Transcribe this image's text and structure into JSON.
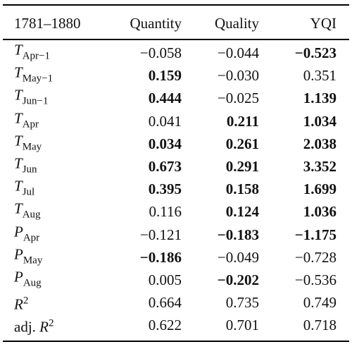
{
  "table": {
    "header": [
      "1781–1880",
      "Quantity",
      "Quality",
      "YQI"
    ],
    "rows": [
      {
        "label": {
          "symbol": "T",
          "sub": "Apr−1"
        },
        "cells": [
          "−0.058",
          "−0.044",
          "−0.523"
        ],
        "bold": [
          false,
          false,
          true
        ]
      },
      {
        "label": {
          "symbol": "T",
          "sub": "May−1"
        },
        "cells": [
          "0.159",
          "−0.030",
          "0.351"
        ],
        "bold": [
          true,
          false,
          false
        ]
      },
      {
        "label": {
          "symbol": "T",
          "sub": "Jun−1"
        },
        "cells": [
          "0.444",
          "−0.025",
          "1.139"
        ],
        "bold": [
          true,
          false,
          true
        ]
      },
      {
        "label": {
          "symbol": "T",
          "sub": "Apr"
        },
        "cells": [
          "0.041",
          "0.211",
          "1.034"
        ],
        "bold": [
          false,
          true,
          true
        ]
      },
      {
        "label": {
          "symbol": "T",
          "sub": "May"
        },
        "cells": [
          "0.034",
          "0.261",
          "2.038"
        ],
        "bold": [
          true,
          true,
          true
        ]
      },
      {
        "label": {
          "symbol": "T",
          "sub": "Jun"
        },
        "cells": [
          "0.673",
          "0.291",
          "3.352"
        ],
        "bold": [
          true,
          true,
          true
        ]
      },
      {
        "label": {
          "symbol": "T",
          "sub": "Jul"
        },
        "cells": [
          "0.395",
          "0.158",
          "1.699"
        ],
        "bold": [
          true,
          true,
          true
        ]
      },
      {
        "label": {
          "symbol": "T",
          "sub": "Aug"
        },
        "cells": [
          "0.116",
          "0.124",
          "1.036"
        ],
        "bold": [
          false,
          true,
          true
        ]
      },
      {
        "label": {
          "symbol": "P",
          "sub": "Apr"
        },
        "cells": [
          "−0.121",
          "−0.183",
          "−1.175"
        ],
        "bold": [
          false,
          true,
          true
        ]
      },
      {
        "label": {
          "symbol": "P",
          "sub": "May"
        },
        "cells": [
          "−0.186",
          "−0.049",
          "−0.728"
        ],
        "bold": [
          true,
          false,
          false
        ]
      },
      {
        "label": {
          "symbol": "P",
          "sub": "Aug"
        },
        "cells": [
          "0.005",
          "−0.202",
          "−0.536"
        ],
        "bold": [
          false,
          true,
          false
        ]
      },
      {
        "label": {
          "symbol": "R",
          "sup": "2"
        },
        "cells": [
          "0.664",
          "0.735",
          "0.749"
        ],
        "bold": [
          false,
          false,
          false
        ]
      },
      {
        "label": {
          "prefix": "adj. ",
          "symbol": "R",
          "sup": "2"
        },
        "cells": [
          "0.622",
          "0.701",
          "0.718"
        ],
        "bold": [
          false,
          false,
          false
        ]
      }
    ]
  }
}
